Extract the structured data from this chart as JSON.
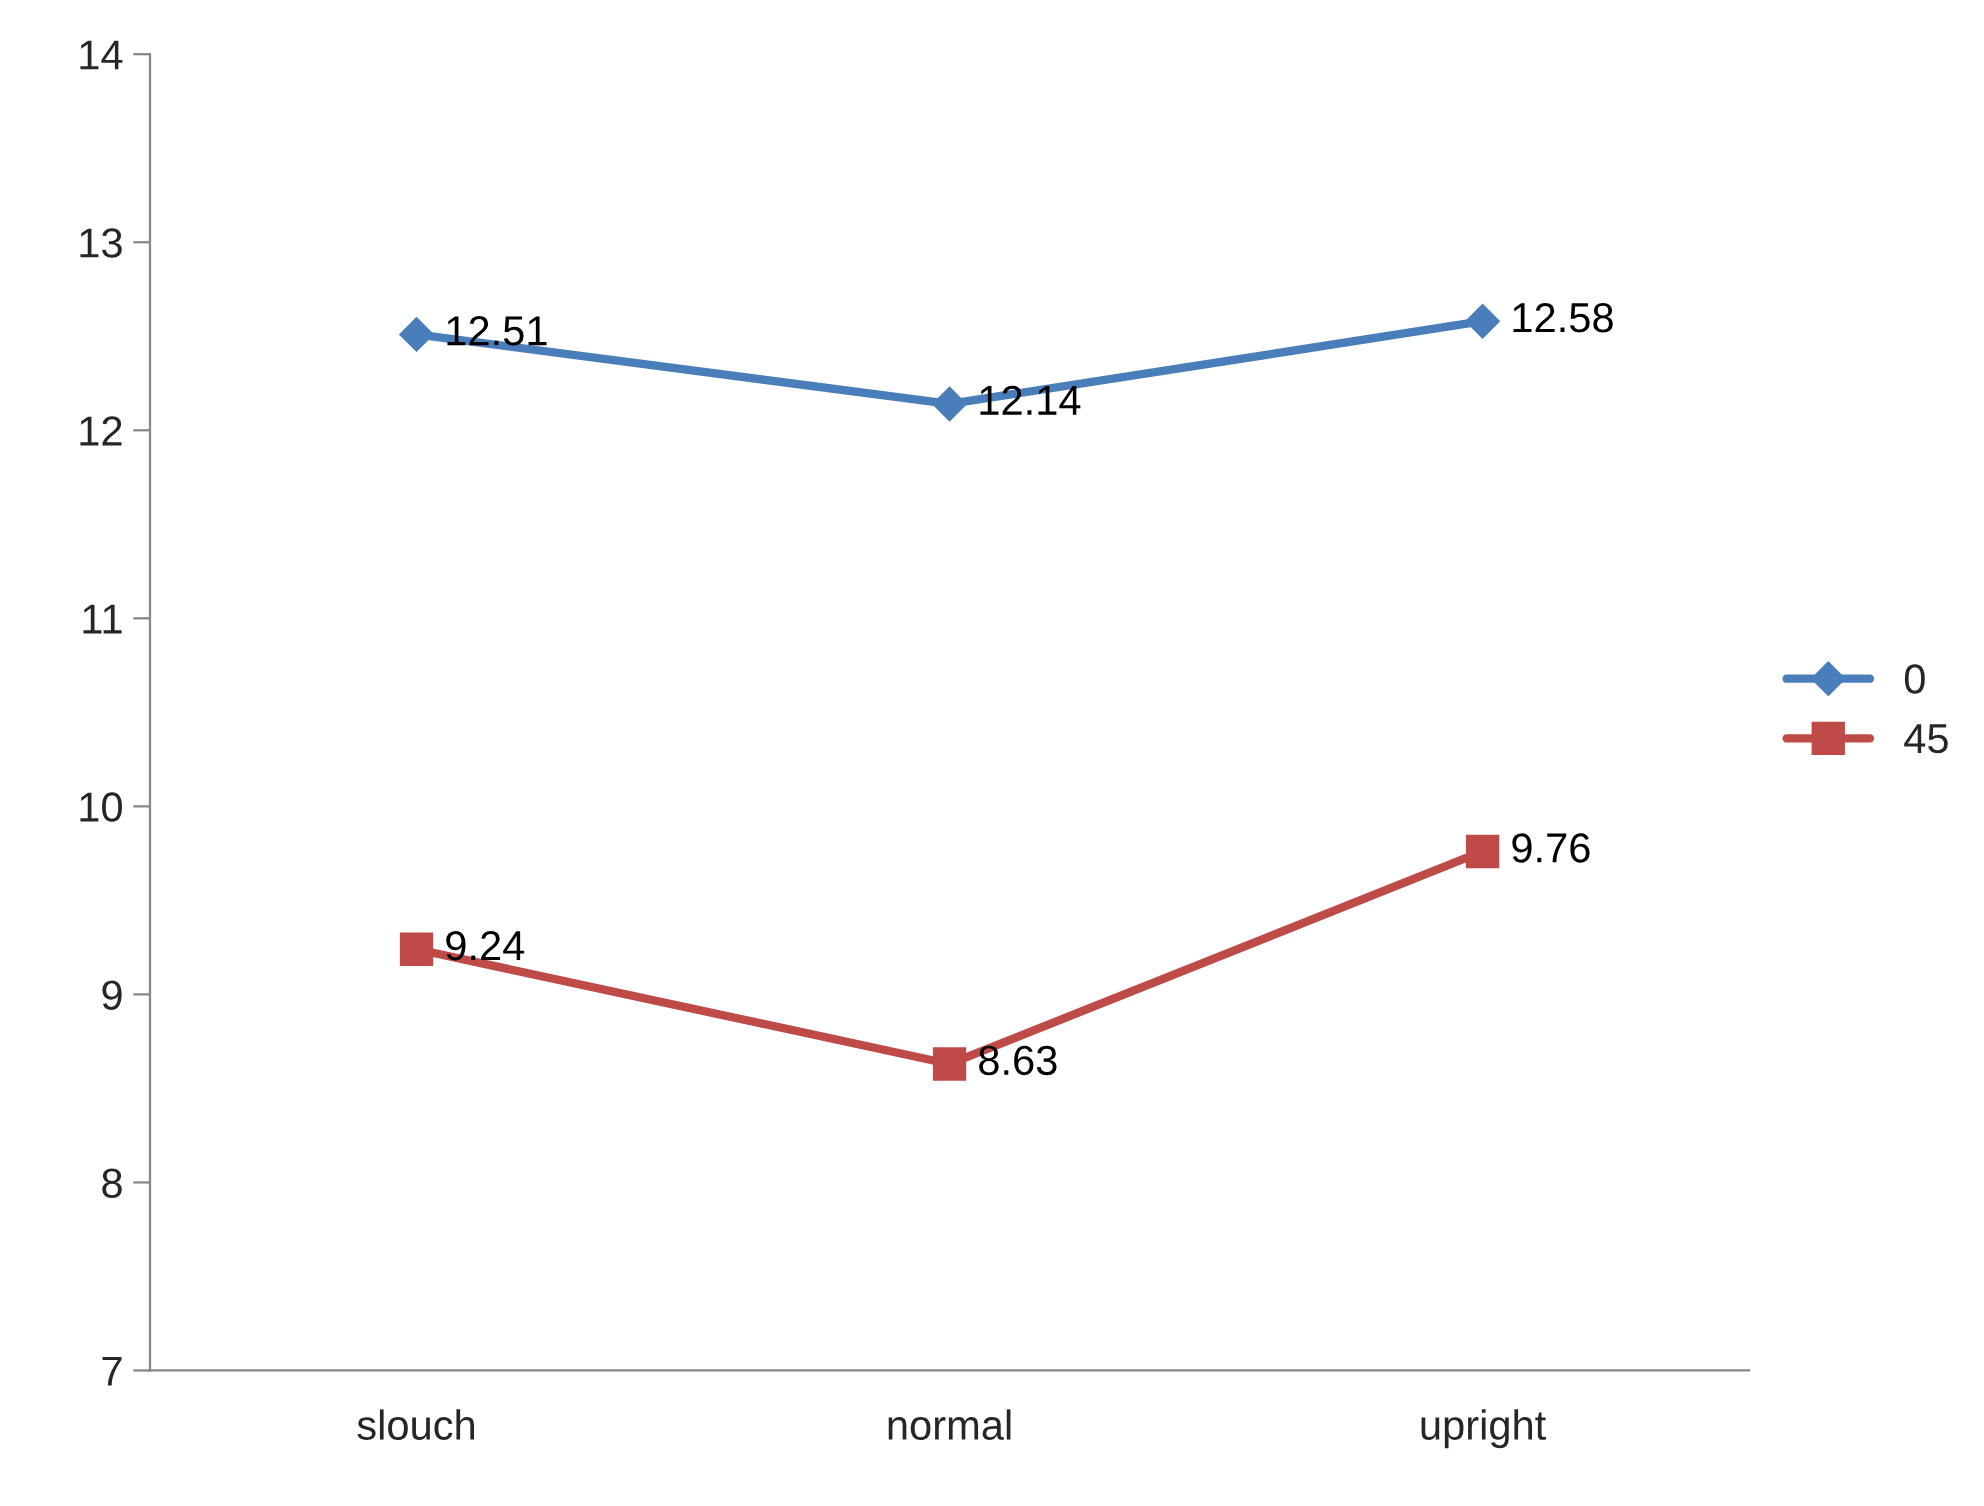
{
  "chart_data": {
    "type": "line",
    "categories": [
      "slouch",
      "normal",
      "upright"
    ],
    "series": [
      {
        "name": "0",
        "color": "#4a7ebb",
        "marker": "diamond",
        "values": [
          12.51,
          12.14,
          12.58
        ]
      },
      {
        "name": "45",
        "color": "#be4b48",
        "marker": "square",
        "values": [
          9.24,
          8.63,
          9.76
        ]
      }
    ],
    "ylim": [
      7,
      14
    ],
    "yticks": [
      7,
      8,
      9,
      10,
      11,
      12,
      13,
      14
    ],
    "grid": false,
    "legend": "right",
    "data_labels": true,
    "line_style": "solid"
  }
}
